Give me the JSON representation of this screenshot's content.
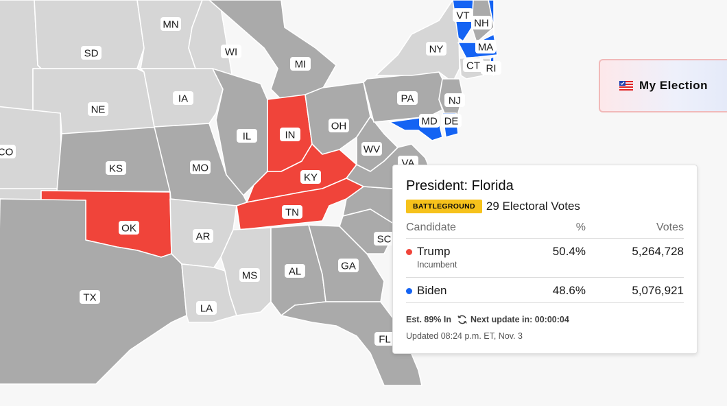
{
  "map": {
    "colors": {
      "gop": "#f0443a",
      "dem": "#1463f3",
      "pending_dark": "#aaaaaa",
      "pending_light": "#d6d6d6",
      "background": "#f7f7f7"
    },
    "states": [
      {
        "abbr": "SD",
        "status": "pending_light"
      },
      {
        "abbr": "NE",
        "status": "pending_light"
      },
      {
        "abbr": "CO",
        "status": "pending_light"
      },
      {
        "abbr": "MN",
        "status": "pending_light"
      },
      {
        "abbr": "IA",
        "status": "pending_light"
      },
      {
        "abbr": "WI",
        "status": "pending_light"
      },
      {
        "abbr": "MI",
        "status": "pending_dark"
      },
      {
        "abbr": "IL",
        "status": "pending_dark"
      },
      {
        "abbr": "IN",
        "status": "gop"
      },
      {
        "abbr": "OH",
        "status": "pending_dark"
      },
      {
        "abbr": "KS",
        "status": "pending_dark"
      },
      {
        "abbr": "MO",
        "status": "pending_dark"
      },
      {
        "abbr": "KY",
        "status": "gop"
      },
      {
        "abbr": "WV",
        "status": "pending_dark"
      },
      {
        "abbr": "VA",
        "status": "pending_dark"
      },
      {
        "abbr": "TN",
        "status": "gop"
      },
      {
        "abbr": "OK",
        "status": "gop"
      },
      {
        "abbr": "AR",
        "status": "pending_light"
      },
      {
        "abbr": "TX",
        "status": "pending_dark"
      },
      {
        "abbr": "LA",
        "status": "pending_light"
      },
      {
        "abbr": "MS",
        "status": "pending_light"
      },
      {
        "abbr": "AL",
        "status": "pending_dark"
      },
      {
        "abbr": "GA",
        "status": "pending_dark"
      },
      {
        "abbr": "SC",
        "status": "pending_dark"
      },
      {
        "abbr": "FL",
        "status": "pending_dark"
      },
      {
        "abbr": "PA",
        "status": "pending_dark"
      },
      {
        "abbr": "NY",
        "status": "pending_light"
      },
      {
        "abbr": "NJ",
        "status": "pending_dark"
      },
      {
        "abbr": "MD",
        "status": "dem"
      },
      {
        "abbr": "DE",
        "status": "dem"
      },
      {
        "abbr": "VT",
        "status": "dem"
      },
      {
        "abbr": "NH",
        "status": "pending_dark"
      },
      {
        "abbr": "MA",
        "status": "dem"
      },
      {
        "abbr": "CT",
        "status": "pending_light"
      },
      {
        "abbr": "RI",
        "status": "pending_light"
      }
    ]
  },
  "my_election": {
    "label": "My Election",
    "icon": "ballot-flag-icon"
  },
  "popup": {
    "title": "President: Florida",
    "badge": "BATTLEGROUND",
    "electoral_votes": "29 Electoral Votes",
    "headers": {
      "candidate": "Candidate",
      "pct": "%",
      "votes": "Votes"
    },
    "candidates": [
      {
        "name": "Trump",
        "note": "Incumbent",
        "pct": "50.4%",
        "votes": "5,264,728",
        "color": "#f0443a"
      },
      {
        "name": "Biden",
        "note": "",
        "pct": "48.6%",
        "votes": "5,076,921",
        "color": "#1463f3"
      }
    ],
    "estimate": "Est. 89% In",
    "next_update": "Next update in: 00:00:04",
    "updated": "Updated 08:24 p.m. ET, Nov. 3"
  }
}
